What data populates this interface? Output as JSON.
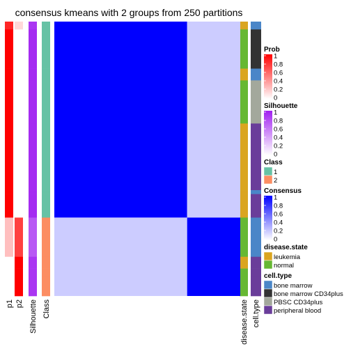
{
  "chart_data": {
    "type": "heatmap",
    "title": "consensus kmeans with 2 groups from 250 partitions",
    "column_labels": [
      "p1",
      "p2",
      "Silhouette",
      "Class",
      "disease.state",
      "cell.type"
    ],
    "groups": [
      {
        "class": 1,
        "size": 50
      },
      {
        "class": 2,
        "size": 20
      }
    ],
    "consensus_matrix_description": {
      "within_class_1": 1.0,
      "within_class_2": 1.0,
      "between_classes": 0.2
    },
    "annotation_bands": [
      {
        "rows": [
          0,
          2
        ],
        "p1": 0.85,
        "p2": 0.15,
        "silhouette": 0.9,
        "class": 1,
        "disease.state": "leukemia",
        "cell.type": "bone marrow"
      },
      {
        "rows": [
          2,
          12
        ],
        "p1": 1,
        "p2": 0,
        "silhouette": 0.95,
        "class": 1,
        "disease.state": "normal",
        "cell.type": "bone marrow CD34plus"
      },
      {
        "rows": [
          12,
          15
        ],
        "p1": 1,
        "p2": 0,
        "silhouette": 0.95,
        "class": 1,
        "disease.state": "leukemia",
        "cell.type": "bone marrow"
      },
      {
        "rows": [
          15,
          26
        ],
        "p1": 1,
        "p2": 0,
        "silhouette": 0.95,
        "class": 1,
        "disease.state": "normal",
        "cell.type": "PBSC CD34plus"
      },
      {
        "rows": [
          26,
          43
        ],
        "p1": 1,
        "p2": 0,
        "silhouette": 0.95,
        "class": 1,
        "disease.state": "leukemia",
        "cell.type": "peripheral blood"
      },
      {
        "rows": [
          43,
          44
        ],
        "p1": 1,
        "p2": 0,
        "silhouette": 0.95,
        "class": 1,
        "disease.state": "leukemia",
        "cell.type": "bone marrow"
      },
      {
        "rows": [
          44,
          50
        ],
        "p1": 1,
        "p2": 0,
        "silhouette": 0.95,
        "class": 1,
        "disease.state": "leukemia",
        "cell.type": "peripheral blood"
      },
      {
        "rows": [
          50,
          60
        ],
        "p1": 0.25,
        "p2": 0.75,
        "silhouette": 0.75,
        "class": 2,
        "disease.state": "normal",
        "cell.type": "bone marrow"
      },
      {
        "rows": [
          60,
          63
        ],
        "p1": 0,
        "p2": 1,
        "silhouette": 0.9,
        "class": 2,
        "disease.state": "leukemia",
        "cell.type": "peripheral blood"
      },
      {
        "rows": [
          63,
          65
        ],
        "p1": 0,
        "p2": 1,
        "silhouette": 0.9,
        "class": 2,
        "disease.state": "normal",
        "cell.type": "peripheral blood"
      },
      {
        "rows": [
          65,
          70
        ],
        "p1": 0,
        "p2": 1,
        "silhouette": 0.9,
        "class": 2,
        "disease.state": "normal",
        "cell.type": "peripheral blood"
      }
    ],
    "legends": [
      {
        "title": "Prob",
        "type": "continuous",
        "ticks": [
          "1",
          "0.8",
          "0.6",
          "0.4",
          "0.2",
          "0"
        ],
        "colors": [
          "#ff0000",
          "#ffffff"
        ]
      },
      {
        "title": "Silhouette",
        "type": "continuous",
        "ticks": [
          "1",
          "0.8",
          "0.6",
          "0.4",
          "0.2",
          "0"
        ],
        "colors": [
          "#a020f0",
          "#ffffff"
        ]
      },
      {
        "title": "Class",
        "type": "discrete",
        "items": [
          {
            "label": "1",
            "color": "#66c2a5"
          },
          {
            "label": "2",
            "color": "#fc8d62"
          }
        ]
      },
      {
        "title": "Consensus",
        "type": "continuous",
        "ticks": [
          "1",
          "0.8",
          "0.6",
          "0.4",
          "0.2",
          "0"
        ],
        "colors": [
          "#0000ff",
          "#ffffff"
        ]
      },
      {
        "title": "disease.state",
        "type": "discrete",
        "items": [
          {
            "label": "leukemia",
            "color": "#daa520"
          },
          {
            "label": "normal",
            "color": "#66b833"
          }
        ]
      },
      {
        "title": "cell.type",
        "type": "discrete",
        "items": [
          {
            "label": "bone marrow",
            "color": "#4a86c8"
          },
          {
            "label": "bone marrow CD34plus",
            "color": "#333333"
          },
          {
            "label": "PBSC CD34plus",
            "color": "#a3a89c"
          },
          {
            "label": "peripheral blood",
            "color": "#6a3d9a"
          }
        ]
      }
    ]
  }
}
